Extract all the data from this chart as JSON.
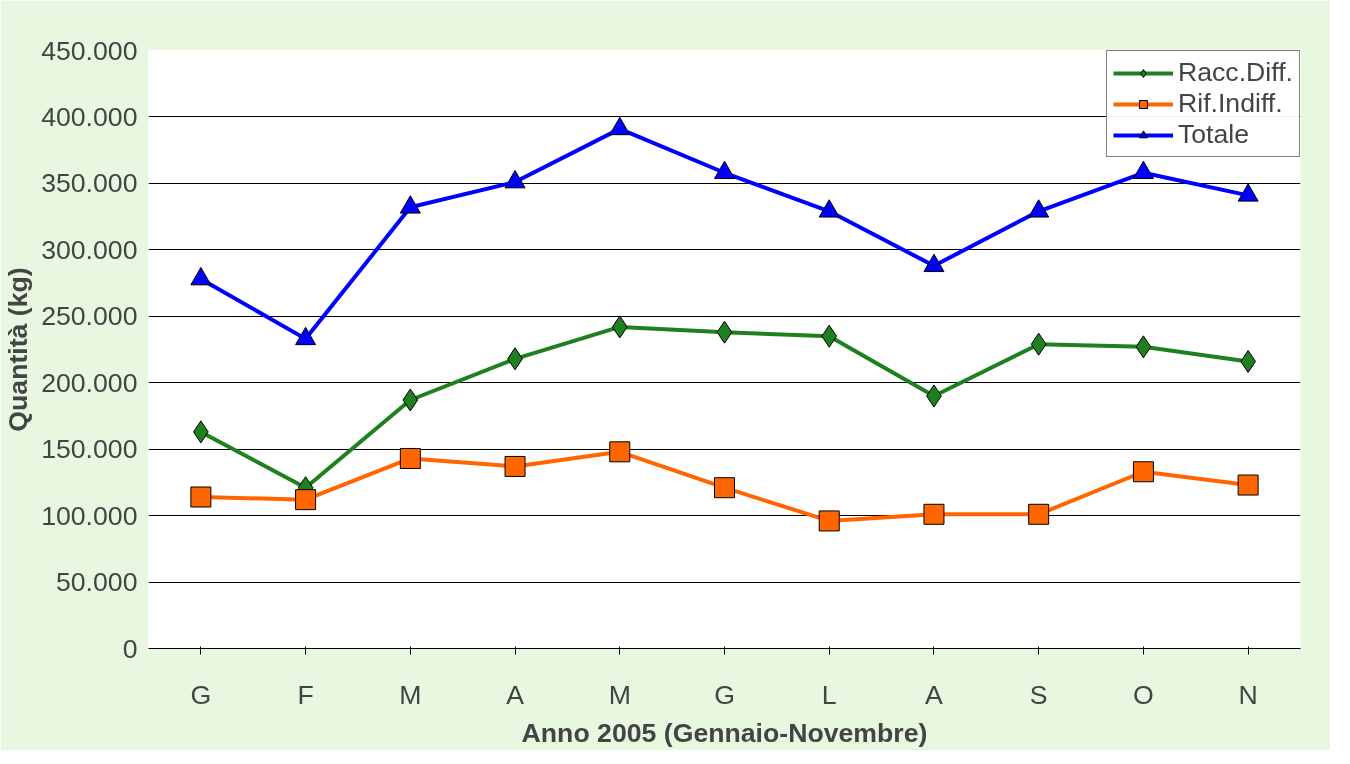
{
  "chart_data": {
    "type": "line",
    "xlabel": "Anno 2005 (Gennaio-Novembre)",
    "ylabel": "Quantità (kg)",
    "categories": [
      "G",
      "F",
      "M",
      "A",
      "M",
      "G",
      "L",
      "A",
      "S",
      "O",
      "N"
    ],
    "series": [
      {
        "name": "Racc.Diff.",
        "color": "#1e801e",
        "marker": "diamond",
        "values": [
          163000,
          121000,
          187000,
          218000,
          242000,
          238000,
          235000,
          190000,
          229000,
          227000,
          216000
        ]
      },
      {
        "name": "Rif.Indiff.",
        "color": "#ff6600",
        "marker": "square",
        "values": [
          114000,
          112000,
          143000,
          137000,
          148000,
          121000,
          96000,
          101000,
          101000,
          133000,
          123000
        ]
      },
      {
        "name": "Totale",
        "color": "#0000ff",
        "marker": "triangle",
        "values": [
          278000,
          233000,
          332000,
          351000,
          391000,
          358000,
          329000,
          288000,
          329000,
          358000,
          341000
        ]
      }
    ],
    "ylim": [
      0,
      450000
    ],
    "yticks": [
      0,
      {
        "value": 50000,
        "label": "50.000"
      },
      {
        "value": 100000,
        "label": "100.000"
      },
      {
        "value": 150000,
        "label": "150.000"
      },
      {
        "value": 200000,
        "label": "200.000"
      },
      {
        "value": 250000,
        "label": "250.000"
      },
      {
        "value": 300000,
        "label": "300.000"
      },
      {
        "value": 350000,
        "label": "350.000"
      },
      {
        "value": 400000,
        "label": "400.000"
      },
      {
        "value": 450000,
        "label": "450.000"
      }
    ],
    "grid": "y",
    "legend": "top right"
  }
}
